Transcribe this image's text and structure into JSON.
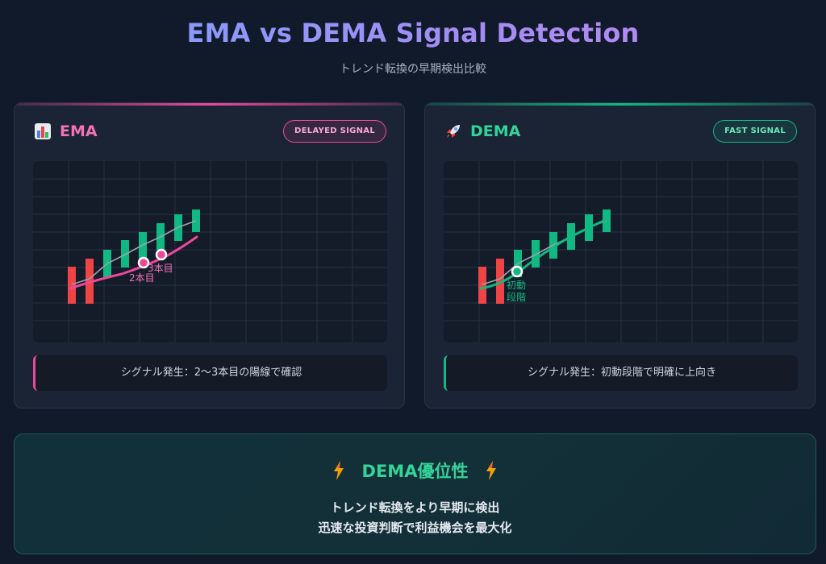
{
  "header": {
    "title": "EMA vs DEMA Signal Detection",
    "subtitle": "トレンド転換の早期検出比較"
  },
  "panels": {
    "ema": {
      "icon": "bar-chart-icon",
      "name": "EMA",
      "badge": "DELAYED SIGNAL",
      "accent": "#ec4899",
      "marker_labels": [
        "2本目",
        "3本目"
      ],
      "signal_text": "シグナル発生：2〜3本目の陽線で確認"
    },
    "dema": {
      "icon": "rocket-icon",
      "name": "DEMA",
      "badge": "FAST SIGNAL",
      "accent": "#10b981",
      "marker_labels": [
        "初動",
        "段階"
      ],
      "signal_text": "シグナル発生：初動段階で明確に上向き"
    }
  },
  "advantage": {
    "icon": "lightning-icon",
    "title": "DEMA優位性",
    "line1": "トレンド転換をより早期に検出",
    "line2": "迅速な投資判断で利益機会を最大化"
  },
  "colors": {
    "bear": "#ef4444",
    "bull": "#10b981",
    "ema_line": "#ec4899",
    "dema_line": "#10b981",
    "price_line": "#9aa3ae"
  }
}
